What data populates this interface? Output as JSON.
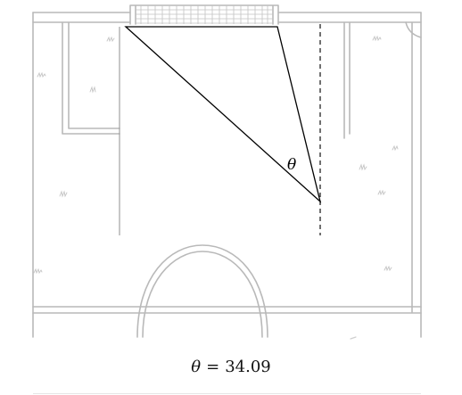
{
  "diagram": {
    "angle_symbol": "θ",
    "angle_value": "34.09"
  },
  "readout": {
    "symbol": "θ",
    "equals": "=",
    "value": "34.09"
  },
  "colors": {
    "field_lines": "#b9b9b9",
    "triangle": "#000000",
    "dashed_line": "#333333"
  }
}
